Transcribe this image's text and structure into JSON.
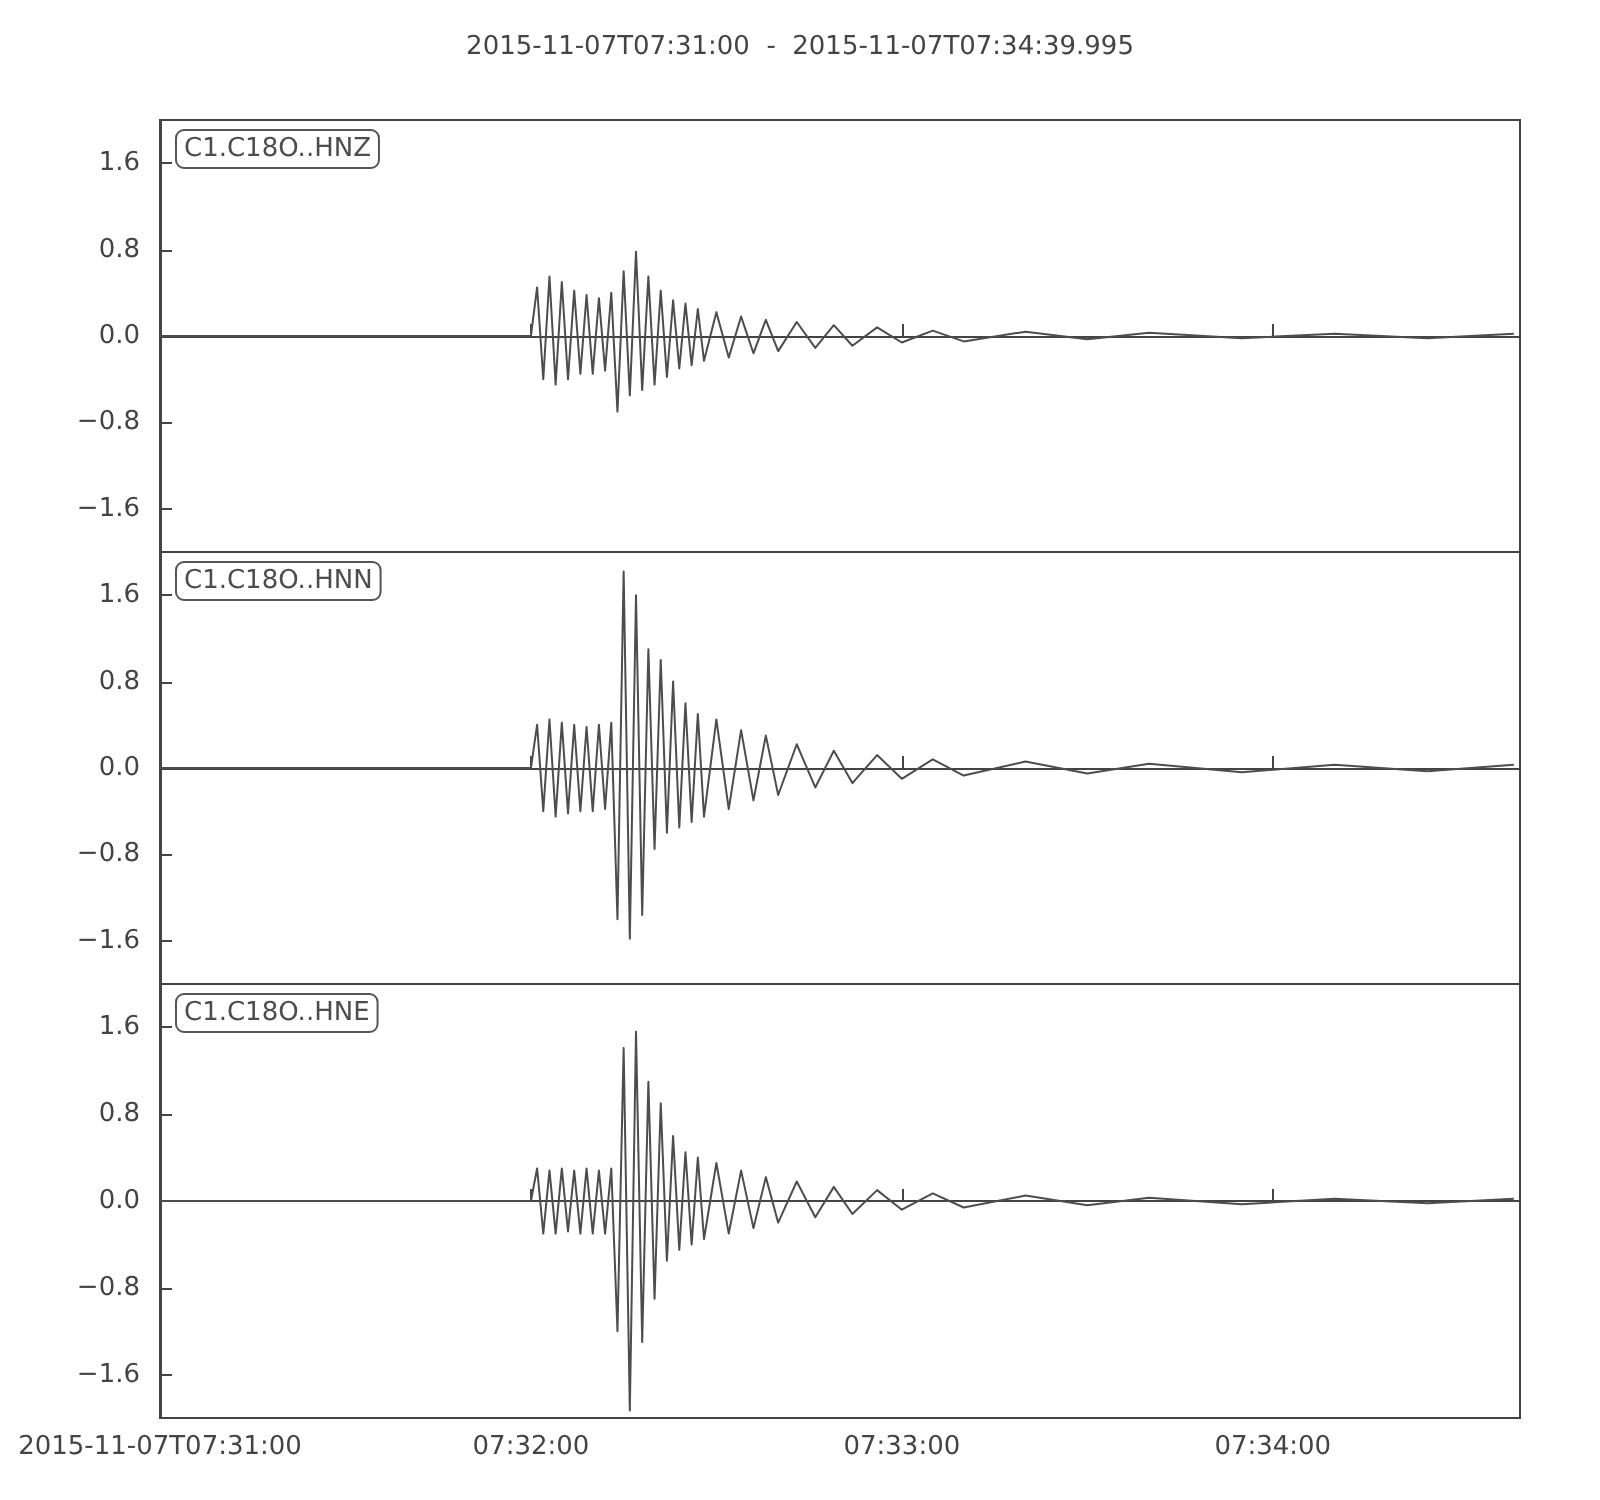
{
  "chart_data": [
    {
      "type": "line",
      "title": "2015-11-07T07:31:00  -  2015-11-07T07:34:39.995",
      "legend": "top left",
      "tick_labels": "y",
      "xlim": [
        "2015-11-07T07:31:00",
        "2015-11-07T07:34:39.995"
      ],
      "xticks": [
        {
          "value": "2015-11-07T07:31:00",
          "label": null
        },
        {
          "value": "2015-11-07T07:32:00",
          "label": null
        },
        {
          "value": "2015-11-07T07:33:00",
          "label": null
        },
        {
          "value": "2015-11-07T07:34:00",
          "label": null
        }
      ],
      "ylim": [
        -2.0,
        2.0
      ],
      "yticks": [
        {
          "value": -1.6,
          "label": "−1.6"
        },
        {
          "value": -0.8,
          "label": "−0.8"
        },
        {
          "value": 0,
          "label": "0.0"
        },
        {
          "value": 0.8,
          "label": "0.8"
        },
        {
          "value": 1.6,
          "label": "1.6"
        }
      ],
      "x": [
        "2015-11-07T07:31:00",
        "2015-11-07T07:32:00",
        "2015-11-07T07:32:01",
        "2015-11-07T07:32:02",
        "2015-11-07T07:32:03",
        "2015-11-07T07:32:04",
        "2015-11-07T07:32:05",
        "2015-11-07T07:32:06",
        "2015-11-07T07:32:07",
        "2015-11-07T07:32:08",
        "2015-11-07T07:32:09",
        "2015-11-07T07:32:10",
        "2015-11-07T07:32:11",
        "2015-11-07T07:32:12",
        "2015-11-07T07:32:13",
        "2015-11-07T07:32:14",
        "2015-11-07T07:32:15",
        "2015-11-07T07:32:16",
        "2015-11-07T07:32:17",
        "2015-11-07T07:32:18",
        "2015-11-07T07:32:19",
        "2015-11-07T07:32:20",
        "2015-11-07T07:32:21",
        "2015-11-07T07:32:22",
        "2015-11-07T07:32:23",
        "2015-11-07T07:32:24",
        "2015-11-07T07:32:25",
        "2015-11-07T07:32:26",
        "2015-11-07T07:32:27",
        "2015-11-07T07:32:28",
        "2015-11-07T07:32:30",
        "2015-11-07T07:32:32",
        "2015-11-07T07:32:34",
        "2015-11-07T07:32:36",
        "2015-11-07T07:32:38",
        "2015-11-07T07:32:40",
        "2015-11-07T07:32:43",
        "2015-11-07T07:32:46",
        "2015-11-07T07:32:49",
        "2015-11-07T07:32:52",
        "2015-11-07T07:32:56",
        "2015-11-07T07:33:00",
        "2015-11-07T07:33:05",
        "2015-11-07T07:33:10",
        "2015-11-07T07:33:20",
        "2015-11-07T07:33:30",
        "2015-11-07T07:33:40",
        "2015-11-07T07:33:55",
        "2015-11-07T07:34:10",
        "2015-11-07T07:34:25",
        "2015-11-07T07:34:39"
      ],
      "series": [
        {
          "name": "C1.C18O..HNZ",
          "color": "#4d4d4d",
          "values": [
            0,
            0,
            0.45,
            -0.4,
            0.55,
            -0.45,
            0.5,
            -0.4,
            0.42,
            -0.35,
            0.38,
            -0.35,
            0.35,
            -0.32,
            0.4,
            -0.7,
            0.6,
            -0.55,
            0.78,
            -0.5,
            0.55,
            -0.45,
            0.42,
            -0.38,
            0.33,
            -0.3,
            0.3,
            -0.27,
            0.25,
            -0.23,
            0.22,
            -0.2,
            0.18,
            -0.16,
            0.15,
            -0.14,
            0.13,
            -0.11,
            0.1,
            -0.09,
            0.08,
            -0.06,
            0.05,
            -0.05,
            0.04,
            -0.03,
            0.03,
            -0.02,
            0.02,
            -0.02,
            0.02
          ]
        }
      ]
    },
    {
      "type": "line",
      "legend": "top left",
      "tick_labels": "y",
      "xlim": [
        "2015-11-07T07:31:00",
        "2015-11-07T07:34:39.995"
      ],
      "xticks": [
        {
          "value": "2015-11-07T07:31:00",
          "label": null
        },
        {
          "value": "2015-11-07T07:32:00",
          "label": null
        },
        {
          "value": "2015-11-07T07:33:00",
          "label": null
        },
        {
          "value": "2015-11-07T07:34:00",
          "label": null
        }
      ],
      "ylim": [
        -2.0,
        2.0
      ],
      "yticks": [
        {
          "value": -1.6,
          "label": "−1.6"
        },
        {
          "value": -0.8,
          "label": "−0.8"
        },
        {
          "value": 0,
          "label": "0.0"
        },
        {
          "value": 0.8,
          "label": "0.8"
        },
        {
          "value": 1.6,
          "label": "1.6"
        }
      ],
      "x": [
        "2015-11-07T07:31:00",
        "2015-11-07T07:32:00",
        "2015-11-07T07:32:01",
        "2015-11-07T07:32:02",
        "2015-11-07T07:32:03",
        "2015-11-07T07:32:04",
        "2015-11-07T07:32:05",
        "2015-11-07T07:32:06",
        "2015-11-07T07:32:07",
        "2015-11-07T07:32:08",
        "2015-11-07T07:32:09",
        "2015-11-07T07:32:10",
        "2015-11-07T07:32:11",
        "2015-11-07T07:32:12",
        "2015-11-07T07:32:13",
        "2015-11-07T07:32:14",
        "2015-11-07T07:32:15",
        "2015-11-07T07:32:16",
        "2015-11-07T07:32:17",
        "2015-11-07T07:32:18",
        "2015-11-07T07:32:19",
        "2015-11-07T07:32:20",
        "2015-11-07T07:32:21",
        "2015-11-07T07:32:22",
        "2015-11-07T07:32:23",
        "2015-11-07T07:32:24",
        "2015-11-07T07:32:25",
        "2015-11-07T07:32:26",
        "2015-11-07T07:32:27",
        "2015-11-07T07:32:28",
        "2015-11-07T07:32:30",
        "2015-11-07T07:32:32",
        "2015-11-07T07:32:34",
        "2015-11-07T07:32:36",
        "2015-11-07T07:32:38",
        "2015-11-07T07:32:40",
        "2015-11-07T07:32:43",
        "2015-11-07T07:32:46",
        "2015-11-07T07:32:49",
        "2015-11-07T07:32:52",
        "2015-11-07T07:32:56",
        "2015-11-07T07:33:00",
        "2015-11-07T07:33:05",
        "2015-11-07T07:33:10",
        "2015-11-07T07:33:20",
        "2015-11-07T07:33:30",
        "2015-11-07T07:33:40",
        "2015-11-07T07:33:55",
        "2015-11-07T07:34:10",
        "2015-11-07T07:34:25",
        "2015-11-07T07:34:39"
      ],
      "series": [
        {
          "name": "C1.C18O..HNN",
          "color": "#4d4d4d",
          "values": [
            0,
            0,
            0.4,
            -0.4,
            0.45,
            -0.45,
            0.42,
            -0.42,
            0.4,
            -0.4,
            0.38,
            -0.4,
            0.4,
            -0.38,
            0.42,
            -1.4,
            1.82,
            -1.58,
            1.6,
            -1.36,
            1.1,
            -0.75,
            1.0,
            -0.6,
            0.8,
            -0.55,
            0.6,
            -0.5,
            0.5,
            -0.45,
            0.45,
            -0.38,
            0.35,
            -0.3,
            0.3,
            -0.25,
            0.22,
            -0.18,
            0.16,
            -0.14,
            0.12,
            -0.1,
            0.08,
            -0.07,
            0.06,
            -0.05,
            0.04,
            -0.04,
            0.03,
            -0.03,
            0.03
          ]
        }
      ]
    },
    {
      "type": "line",
      "legend": "top left",
      "xlim": [
        "2015-11-07T07:31:00",
        "2015-11-07T07:34:39.995"
      ],
      "xticks": [
        {
          "value": "2015-11-07T07:31:00",
          "label": "2015-11-07T07:31:00"
        },
        {
          "value": "2015-11-07T07:32:00",
          "label": "07:32:00"
        },
        {
          "value": "2015-11-07T07:33:00",
          "label": "07:33:00"
        },
        {
          "value": "2015-11-07T07:34:00",
          "label": "07:34:00"
        }
      ],
      "ylim": [
        -2.0,
        2.0
      ],
      "yticks": [
        {
          "value": -1.6,
          "label": "−1.6"
        },
        {
          "value": -0.8,
          "label": "−0.8"
        },
        {
          "value": 0,
          "label": "0.0"
        },
        {
          "value": 0.8,
          "label": "0.8"
        },
        {
          "value": 1.6,
          "label": "1.6"
        }
      ],
      "x": [
        "2015-11-07T07:31:00",
        "2015-11-07T07:32:00",
        "2015-11-07T07:32:01",
        "2015-11-07T07:32:02",
        "2015-11-07T07:32:03",
        "2015-11-07T07:32:04",
        "2015-11-07T07:32:05",
        "2015-11-07T07:32:06",
        "2015-11-07T07:32:07",
        "2015-11-07T07:32:08",
        "2015-11-07T07:32:09",
        "2015-11-07T07:32:10",
        "2015-11-07T07:32:11",
        "2015-11-07T07:32:12",
        "2015-11-07T07:32:13",
        "2015-11-07T07:32:14",
        "2015-11-07T07:32:15",
        "2015-11-07T07:32:16",
        "2015-11-07T07:32:17",
        "2015-11-07T07:32:18",
        "2015-11-07T07:32:19",
        "2015-11-07T07:32:20",
        "2015-11-07T07:32:21",
        "2015-11-07T07:32:22",
        "2015-11-07T07:32:23",
        "2015-11-07T07:32:24",
        "2015-11-07T07:32:25",
        "2015-11-07T07:32:26",
        "2015-11-07T07:32:27",
        "2015-11-07T07:32:28",
        "2015-11-07T07:32:30",
        "2015-11-07T07:32:32",
        "2015-11-07T07:32:34",
        "2015-11-07T07:32:36",
        "2015-11-07T07:32:38",
        "2015-11-07T07:32:40",
        "2015-11-07T07:32:43",
        "2015-11-07T07:32:46",
        "2015-11-07T07:32:49",
        "2015-11-07T07:32:52",
        "2015-11-07T07:32:56",
        "2015-11-07T07:33:00",
        "2015-11-07T07:33:05",
        "2015-11-07T07:33:10",
        "2015-11-07T07:33:20",
        "2015-11-07T07:33:30",
        "2015-11-07T07:33:40",
        "2015-11-07T07:33:55",
        "2015-11-07T07:34:10",
        "2015-11-07T07:34:25",
        "2015-11-07T07:34:39"
      ],
      "series": [
        {
          "name": "C1.C18O..HNE",
          "color": "#4d4d4d",
          "values": [
            0,
            0,
            0.3,
            -0.3,
            0.28,
            -0.3,
            0.3,
            -0.28,
            0.28,
            -0.3,
            0.3,
            -0.3,
            0.28,
            -0.3,
            0.3,
            -1.2,
            1.41,
            -1.93,
            1.56,
            -1.3,
            1.1,
            -0.9,
            0.9,
            -0.55,
            0.6,
            -0.45,
            0.45,
            -0.4,
            0.4,
            -0.35,
            0.35,
            -0.3,
            0.28,
            -0.25,
            0.22,
            -0.2,
            0.18,
            -0.15,
            0.13,
            -0.12,
            0.1,
            -0.08,
            0.07,
            -0.06,
            0.05,
            -0.04,
            0.03,
            -0.03,
            0.02,
            -0.02,
            0.02
          ]
        }
      ]
    }
  ]
}
